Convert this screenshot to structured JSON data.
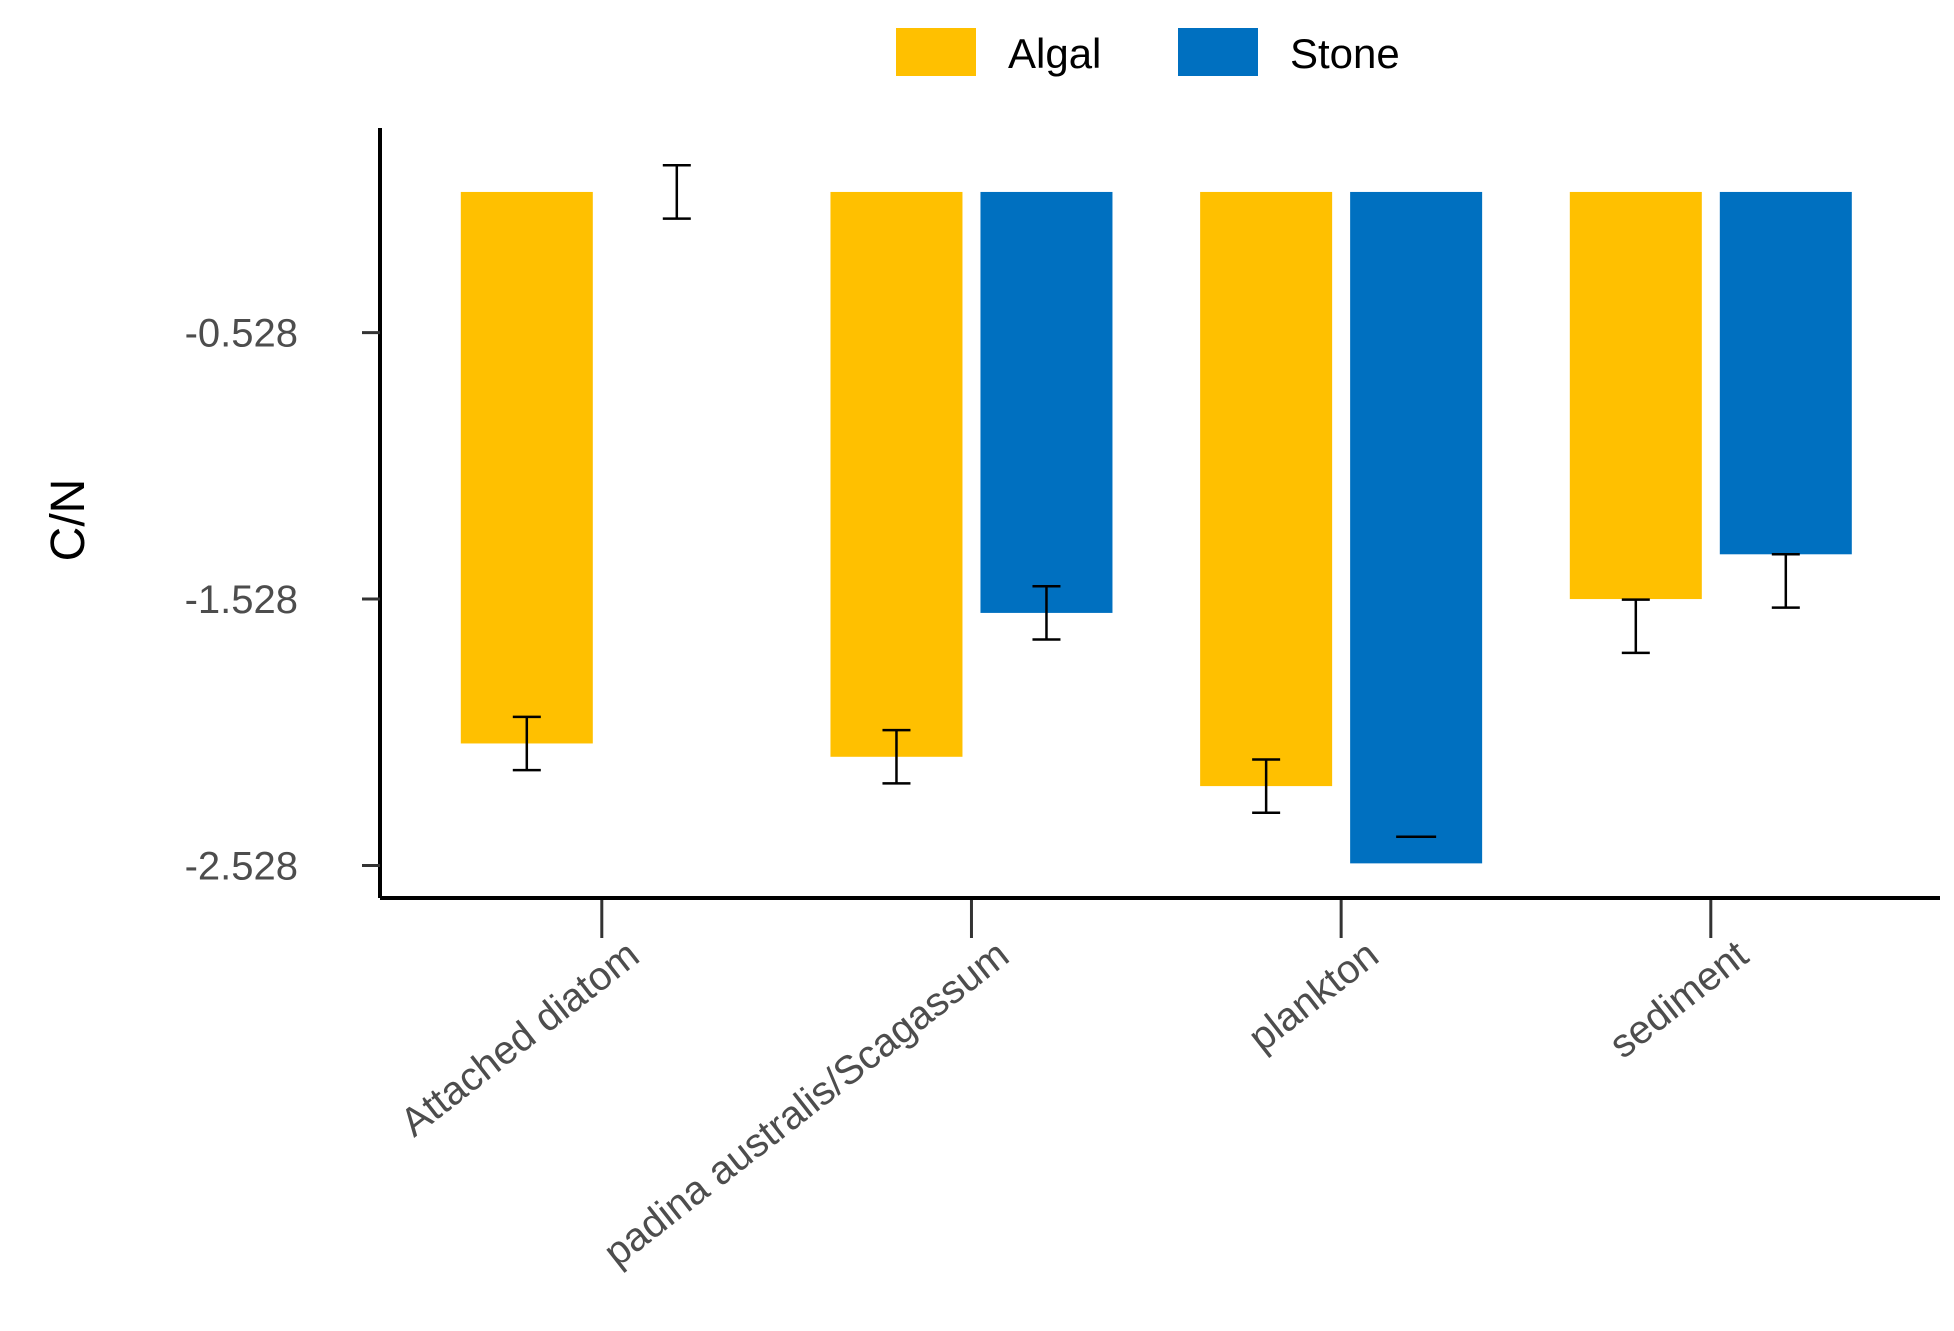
{
  "chart_data": {
    "type": "bar",
    "title": "",
    "xlabel": "",
    "ylabel": "C/N",
    "categories": [
      "Attached diatom",
      "padina australis/Scagassum",
      "plankton",
      "sediment"
    ],
    "series": [
      {
        "name": "Algal",
        "color": "#FFC000",
        "values": [
          -2.07,
          -2.12,
          -2.23,
          -1.528
        ],
        "errors": [
          0.1,
          0.1,
          0.1,
          0.1
        ]
      },
      {
        "name": "Stone",
        "color": "#0070C0",
        "values": [
          null,
          -1.58,
          -2.52,
          -1.36
        ],
        "errors": [
          0.1,
          0.1,
          0.0,
          0.1
        ]
      }
    ],
    "error_bar_centers": [
      [
        -2.07,
        -2.12,
        -2.23,
        -1.63
      ],
      [
        0.0,
        -1.58,
        -2.42,
        -1.46
      ]
    ],
    "bar_baseline": 0.0,
    "yticks": [
      -0.528,
      -1.528,
      -2.528
    ],
    "ytick_labels": [
      "-0.528",
      "-1.528",
      "-2.528"
    ],
    "ylim": [
      -2.65,
      0.24
    ],
    "legend_position": "top",
    "grid": false
  }
}
